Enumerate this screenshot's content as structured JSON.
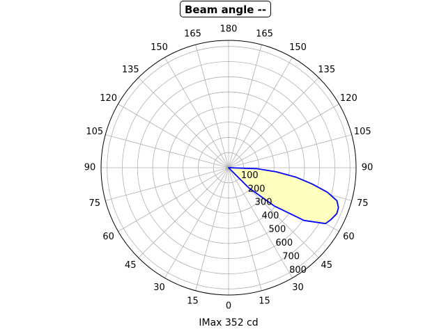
{
  "chart_data": {
    "type": "polar",
    "title": "Beam angle --",
    "xlabel": "IMax 352 cd",
    "angle_ticks": [
      "0",
      "15",
      "30",
      "45",
      "60",
      "75",
      "90",
      "105",
      "120",
      "135",
      "150",
      "165",
      "180",
      "165",
      "150",
      "135",
      "120",
      "105",
      "90",
      "75",
      "60",
      "45",
      "30",
      "15"
    ],
    "radial_ticks": [
      100,
      200,
      300,
      400,
      500,
      600,
      700,
      800
    ],
    "rlim": [
      0,
      900
    ],
    "grid": true,
    "series": [
      {
        "color": "#0000ff",
        "fill": "#ffffc0",
        "points": [
          {
            "angle": 0,
            "value": 0
          },
          {
            "angle": 10,
            "value": 0
          },
          {
            "angle": 20,
            "value": 0
          },
          {
            "angle": 25,
            "value": 0
          },
          {
            "angle": 30,
            "value": 0
          },
          {
            "angle": 35,
            "value": 0
          },
          {
            "angle": 40,
            "value": 0
          },
          {
            "angle": 45,
            "value": 200
          },
          {
            "angle": 50,
            "value": 420
          },
          {
            "angle": 55,
            "value": 650
          },
          {
            "angle": 60,
            "value": 790
          },
          {
            "angle": 63,
            "value": 810
          },
          {
            "angle": 67,
            "value": 830
          },
          {
            "angle": 70,
            "value": 825
          },
          {
            "angle": 73,
            "value": 800
          },
          {
            "angle": 76,
            "value": 720
          },
          {
            "angle": 79,
            "value": 600
          },
          {
            "angle": 82,
            "value": 480
          },
          {
            "angle": 85,
            "value": 340
          },
          {
            "angle": 88,
            "value": 200
          },
          {
            "angle": 90,
            "value": 0
          }
        ]
      }
    ]
  }
}
